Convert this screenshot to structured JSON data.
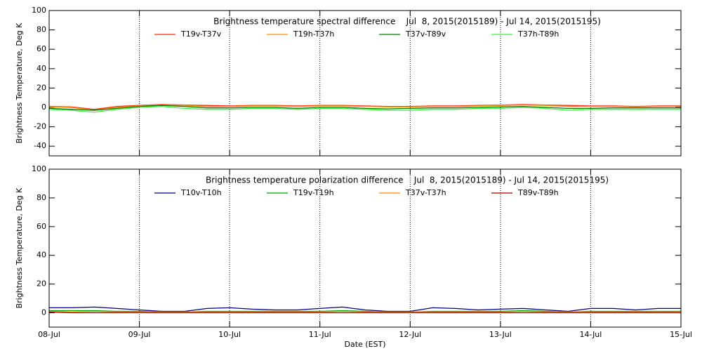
{
  "chart_data": [
    {
      "type": "line",
      "title": "Brightness temperature spectral difference    Jul  8, 2015(2015189) - Jul 14, 2015(2015195)",
      "ylabel": "Brightness Temperature, Deg K",
      "x": [
        0,
        0.25,
        0.5,
        0.75,
        1,
        1.25,
        1.5,
        1.75,
        2,
        2.25,
        2.5,
        2.75,
        3,
        3.25,
        3.5,
        3.75,
        4,
        4.25,
        4.5,
        4.75,
        5,
        5.25,
        5.5,
        5.75,
        6,
        6.25,
        6.5,
        6.75,
        7
      ],
      "xlim": [
        0,
        7
      ],
      "xticks": [
        {
          "value": 0,
          "label": "08-Jul"
        },
        {
          "value": 1,
          "label": "09-Jul"
        },
        {
          "value": 2,
          "label": "10-Jul"
        },
        {
          "value": 3,
          "label": "11-Jul"
        },
        {
          "value": 4,
          "label": "12-Jul"
        },
        {
          "value": 5,
          "label": "13-Jul"
        },
        {
          "value": 6,
          "label": "14-Jul"
        },
        {
          "value": 7,
          "label": "15-Jul"
        }
      ],
      "ylim": [
        -50,
        100
      ],
      "yticks": [
        -40,
        -20,
        0,
        20,
        40,
        60,
        80,
        100
      ],
      "xgrid": true,
      "series": [
        {
          "name": "T19v-T37v",
          "color": "#ff2a00",
          "values": [
            1,
            0.5,
            -2,
            1,
            2,
            3,
            2.5,
            2,
            1.5,
            2,
            2,
            1.5,
            2,
            2,
            1.5,
            1,
            1,
            1.5,
            1.5,
            2,
            2.5,
            3,
            2.5,
            2,
            1.5,
            1.5,
            1,
            1.5,
            1.5
          ]
        },
        {
          "name": "T19h-T37h",
          "color": "#ff8c00",
          "values": [
            0.5,
            0,
            -3,
            0,
            1.5,
            2.5,
            2,
            1,
            1,
            1.5,
            1.5,
            1,
            1.5,
            1.5,
            1,
            0.5,
            0.5,
            1,
            1,
            1.5,
            2,
            2.5,
            2,
            1,
            1,
            1,
            0.5,
            1,
            1
          ]
        },
        {
          "name": "T37v-T89v",
          "color": "#007a00",
          "values": [
            -1,
            -2,
            -3,
            -1,
            1,
            2,
            1,
            -0.5,
            -0.5,
            0,
            0,
            -1,
            0,
            0,
            -1,
            -1.5,
            -1,
            -0.5,
            -0.5,
            0,
            0.5,
            1,
            0,
            -1,
            -1,
            -0.5,
            -0.5,
            -0.5,
            -0.5
          ]
        },
        {
          "name": "T37h-T89h",
          "color": "#44ee44",
          "values": [
            -2,
            -3,
            -5,
            -2,
            0,
            1,
            -1,
            -2,
            -2,
            -1,
            -1,
            -2,
            -1,
            -1,
            -2,
            -3,
            -3,
            -2,
            -2,
            -1,
            -1,
            0,
            -1,
            -3,
            -2,
            -2,
            -2,
            -2,
            -2
          ]
        }
      ]
    },
    {
      "type": "line",
      "title": "Brightness temperature polarization difference    Jul  8, 2015(2015189) - Jul 14, 2015(2015195)",
      "ylabel": "Brightness Temperature, Deg K",
      "xlabel": "Date (EST)",
      "x": [
        0,
        0.25,
        0.5,
        0.75,
        1,
        1.25,
        1.5,
        1.75,
        2,
        2.25,
        2.5,
        2.75,
        3,
        3.25,
        3.5,
        3.75,
        4,
        4.25,
        4.5,
        4.75,
        5,
        5.25,
        5.5,
        5.75,
        6,
        6.25,
        6.5,
        6.75,
        7
      ],
      "xlim": [
        0,
        7
      ],
      "xticks": [
        {
          "value": 0,
          "label": "08-Jul"
        },
        {
          "value": 1,
          "label": "09-Jul"
        },
        {
          "value": 2,
          "label": "10-Jul"
        },
        {
          "value": 3,
          "label": "11-Jul"
        },
        {
          "value": 4,
          "label": "12-Jul"
        },
        {
          "value": 5,
          "label": "13-Jul"
        },
        {
          "value": 6,
          "label": "14-Jul"
        },
        {
          "value": 7,
          "label": "15-Jul"
        }
      ],
      "ylim": [
        -10,
        100
      ],
      "yticks": [
        0,
        20,
        40,
        60,
        80,
        100
      ],
      "xgrid": true,
      "series": [
        {
          "name": "T10v-T10h",
          "color": "#000080",
          "values": [
            3.5,
            3.5,
            4,
            3,
            2,
            1,
            1,
            3,
            3.5,
            2.5,
            2,
            2,
            3,
            4,
            2,
            1,
            1,
            3.5,
            3,
            2,
            2.5,
            3,
            2,
            1,
            3,
            3,
            2,
            3,
            3
          ]
        },
        {
          "name": "T19v-T19h",
          "color": "#00a000",
          "values": [
            1.5,
            1.5,
            1.5,
            1,
            1,
            0.5,
            0.5,
            1,
            1,
            1,
            1,
            1,
            1,
            1.5,
            1,
            0.5,
            0.5,
            1,
            1,
            1,
            1,
            1.5,
            1,
            0.5,
            1,
            1,
            1,
            1,
            1
          ]
        },
        {
          "name": "T37v-T37h",
          "color": "#ff8c00",
          "values": [
            1,
            0.5,
            1,
            0.5,
            0.5,
            0.5,
            0.5,
            0.5,
            0.5,
            0.5,
            0.5,
            0.5,
            0.5,
            1,
            0.5,
            0.5,
            0.5,
            0.5,
            0.5,
            0.5,
            0.5,
            1,
            0.5,
            0.5,
            0.5,
            0.5,
            0.5,
            0.5,
            0.5
          ]
        },
        {
          "name": "T89v-T89h",
          "color": "#a00000",
          "values": [
            0.5,
            0,
            0,
            0,
            0,
            0,
            0,
            0,
            0,
            0,
            0,
            0,
            0,
            0,
            0,
            0,
            0,
            0,
            0,
            0,
            0,
            0,
            0,
            0,
            0,
            0,
            0,
            0,
            0
          ]
        }
      ]
    }
  ]
}
